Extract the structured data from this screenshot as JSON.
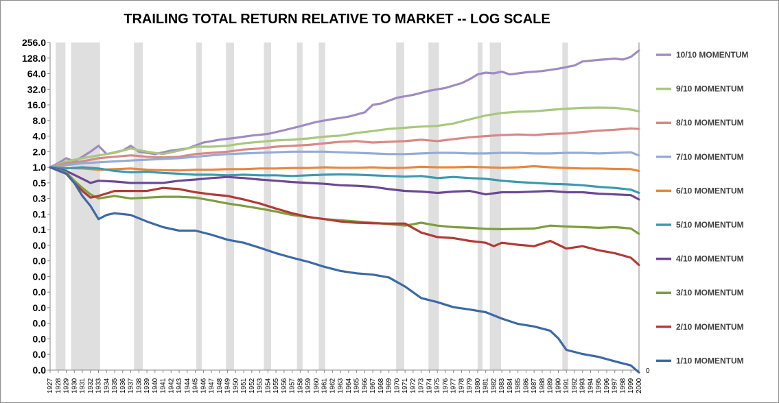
{
  "chart_data": {
    "type": "line",
    "title": "TRAILING TOTAL RETURN RELATIVE TO MARKET -- LOG SCALE",
    "scale": "log2",
    "ylim": [
      0.0001,
      256
    ],
    "ytick_values": [
      256,
      128,
      64,
      32,
      16,
      8,
      4,
      2,
      1,
      0.5,
      0.25,
      0.125,
      0.0625,
      0.03125,
      0.015625,
      0.0078125,
      0.00390625,
      0.001953125,
      0.0009765625,
      0.00048828125,
      0.000244140625,
      0.0001220703125
    ],
    "ytick_labels": [
      "256.0",
      "128.0",
      "64.0",
      "32.0",
      "16.0",
      "8.0",
      "4.0",
      "2.0",
      "1.0",
      "0.5",
      "0.3",
      "0.1",
      "0.1",
      "0.0",
      "0.0",
      "0.0",
      "0.0",
      "0.0",
      "0.0",
      "0.0",
      "0.0",
      "0.0"
    ],
    "secondary_axis_label": "0",
    "xlim": [
      1927,
      2000
    ],
    "x_ticks": [
      "1927",
      "1928",
      "1929",
      "1930",
      "1931",
      "1932",
      "1933",
      "1934",
      "1935",
      "1936",
      "1937",
      "1938",
      "1939",
      "1940",
      "1941",
      "1942",
      "1943",
      "1944",
      "1945",
      "1946",
      "1947",
      "1948",
      "1949",
      "1950",
      "1951",
      "1952",
      "1953",
      "1954",
      "1955",
      "1956",
      "1957",
      "1958",
      "1959",
      "1960",
      "1961",
      "1962",
      "1963",
      "1964",
      "1965",
      "1966",
      "1967",
      "1968",
      "1969",
      "1970",
      "1971",
      "1972",
      "1973",
      "1974",
      "1975",
      "1976",
      "1977",
      "1978",
      "1979",
      "1980",
      "1981",
      "1982",
      "1983",
      "1984",
      "1985",
      "1986",
      "1987",
      "1988",
      "1989",
      "1990",
      "1991",
      "1992",
      "1993",
      "1994",
      "1995",
      "1996",
      "1997",
      "1998",
      "1999",
      "2000"
    ],
    "recessions": [
      [
        1927.7,
        1928.9
      ],
      [
        1929.6,
        1933.2
      ],
      [
        1937.4,
        1938.5
      ],
      [
        1945.1,
        1945.8
      ],
      [
        1948.8,
        1949.8
      ],
      [
        1953.5,
        1954.4
      ],
      [
        1957.6,
        1958.3
      ],
      [
        1960.3,
        1961.1
      ],
      [
        1969.9,
        1970.9
      ],
      [
        1973.9,
        1975.2
      ],
      [
        1980.0,
        1980.6
      ],
      [
        1981.5,
        1982.9
      ],
      [
        1990.5,
        1991.2
      ]
    ],
    "legend_position": "right",
    "series": [
      {
        "name": "10/10 MOMENTUM",
        "color": "#9e8cc1",
        "x": [
          1927,
          1928,
          1929,
          1930,
          1931,
          1932,
          1933,
          1934,
          1936,
          1937,
          1938,
          1940,
          1942,
          1944,
          1946,
          1948,
          1950,
          1952,
          1954,
          1956,
          1958,
          1960,
          1962,
          1964,
          1966,
          1967,
          1968,
          1970,
          1972,
          1974,
          1976,
          1978,
          1979,
          1980,
          1981,
          1982,
          1983,
          1984,
          1986,
          1988,
          1990,
          1992,
          1993,
          1995,
          1997,
          1998,
          1999,
          2000
        ],
        "values": [
          1.0,
          1.2,
          1.5,
          1.3,
          1.6,
          2.0,
          2.6,
          1.8,
          2.1,
          2.6,
          2.0,
          1.8,
          2.1,
          2.3,
          3.0,
          3.4,
          3.7,
          4.1,
          4.4,
          5.2,
          6.2,
          7.5,
          8.5,
          9.5,
          11.5,
          16,
          17,
          22,
          25,
          30,
          34,
          42,
          50,
          62,
          67,
          65,
          70,
          62,
          68,
          72,
          80,
          92,
          110,
          118,
          125,
          120,
          135,
          180
        ]
      },
      {
        "name": "9/10 MOMENTUM",
        "color": "#a8c87e",
        "x": [
          1927,
          1929,
          1931,
          1933,
          1935,
          1937,
          1939,
          1941,
          1943,
          1945,
          1947,
          1949,
          1951,
          1953,
          1955,
          1957,
          1959,
          1961,
          1963,
          1965,
          1967,
          1969,
          1971,
          1973,
          1975,
          1977,
          1979,
          1981,
          1983,
          1985,
          1987,
          1989,
          1991,
          1993,
          1995,
          1997,
          1999,
          2000
        ],
        "values": [
          1.0,
          1.3,
          1.5,
          1.7,
          1.9,
          2.3,
          2.0,
          1.8,
          2.1,
          2.5,
          2.5,
          2.6,
          2.9,
          3.1,
          3.3,
          3.4,
          3.6,
          3.9,
          4.1,
          4.6,
          5.0,
          5.5,
          5.8,
          6.1,
          6.3,
          7.0,
          8.4,
          10.0,
          11.2,
          11.8,
          12.0,
          12.8,
          13.5,
          14.0,
          14.2,
          14.0,
          13.0,
          12.0
        ]
      },
      {
        "name": "8/10 MOMENTUM",
        "color": "#d98886",
        "x": [
          1927,
          1929,
          1931,
          1933,
          1935,
          1937,
          1939,
          1941,
          1943,
          1945,
          1947,
          1949,
          1951,
          1953,
          1955,
          1957,
          1959,
          1961,
          1963,
          1965,
          1967,
          1969,
          1971,
          1973,
          1975,
          1977,
          1979,
          1981,
          1983,
          1985,
          1987,
          1989,
          1991,
          1993,
          1995,
          1997,
          1999,
          2000
        ],
        "values": [
          1.0,
          1.2,
          1.3,
          1.5,
          1.6,
          1.7,
          1.6,
          1.55,
          1.6,
          1.8,
          1.9,
          2.0,
          2.2,
          2.3,
          2.5,
          2.6,
          2.7,
          2.9,
          3.1,
          3.2,
          3.0,
          3.1,
          3.2,
          3.4,
          3.2,
          3.5,
          3.8,
          4.0,
          4.2,
          4.3,
          4.2,
          4.4,
          4.5,
          4.8,
          5.1,
          5.3,
          5.6,
          5.5
        ]
      },
      {
        "name": "7/10 MOMENTUM",
        "color": "#94abd6",
        "x": [
          1927,
          1929,
          1931,
          1933,
          1935,
          1937,
          1939,
          1941,
          1943,
          1945,
          1947,
          1949,
          1951,
          1953,
          1955,
          1957,
          1959,
          1961,
          1963,
          1965,
          1967,
          1969,
          1971,
          1973,
          1975,
          1977,
          1979,
          1981,
          1983,
          1985,
          1987,
          1989,
          1991,
          1993,
          1995,
          1997,
          1999,
          2000
        ],
        "values": [
          1.0,
          1.1,
          1.2,
          1.25,
          1.3,
          1.35,
          1.4,
          1.45,
          1.5,
          1.6,
          1.7,
          1.8,
          1.85,
          1.9,
          1.95,
          2.0,
          2.0,
          2.0,
          1.95,
          1.9,
          1.85,
          1.8,
          1.8,
          1.85,
          1.9,
          1.9,
          1.85,
          1.85,
          1.9,
          1.9,
          1.85,
          1.85,
          1.9,
          1.9,
          1.85,
          1.9,
          1.95,
          1.7
        ]
      },
      {
        "name": "6/10 MOMENTUM",
        "color": "#e5873e",
        "x": [
          1927,
          1929,
          1931,
          1933,
          1935,
          1937,
          1939,
          1941,
          1943,
          1945,
          1947,
          1949,
          1951,
          1953,
          1955,
          1957,
          1959,
          1961,
          1963,
          1965,
          1967,
          1969,
          1971,
          1973,
          1975,
          1977,
          1979,
          1981,
          1983,
          1985,
          1987,
          1989,
          1991,
          1993,
          1995,
          1997,
          1999,
          2000
        ],
        "values": [
          1.0,
          0.97,
          0.95,
          0.9,
          0.92,
          0.95,
          0.9,
          0.88,
          0.87,
          0.9,
          0.9,
          0.92,
          0.92,
          0.95,
          0.95,
          0.97,
          0.97,
          1.0,
          0.98,
          0.98,
          1.0,
          0.97,
          0.98,
          1.02,
          1.0,
          1.0,
          1.02,
          1.0,
          0.98,
          1.0,
          1.05,
          1.0,
          0.97,
          0.95,
          0.95,
          0.93,
          0.92,
          0.85
        ]
      },
      {
        "name": "5/10 MOMENTUM",
        "color": "#3a9aae",
        "x": [
          1927,
          1929,
          1931,
          1933,
          1935,
          1937,
          1939,
          1941,
          1943,
          1945,
          1947,
          1949,
          1951,
          1953,
          1955,
          1957,
          1959,
          1961,
          1963,
          1965,
          1967,
          1969,
          1971,
          1973,
          1975,
          1977,
          1979,
          1981,
          1983,
          1985,
          1987,
          1989,
          1991,
          1993,
          1995,
          1997,
          1999,
          2000
        ],
        "values": [
          1.0,
          0.95,
          1.0,
          0.95,
          0.85,
          0.8,
          0.82,
          0.78,
          0.75,
          0.72,
          0.72,
          0.7,
          0.72,
          0.7,
          0.7,
          0.68,
          0.7,
          0.72,
          0.73,
          0.72,
          0.7,
          0.68,
          0.66,
          0.68,
          0.62,
          0.65,
          0.62,
          0.6,
          0.55,
          0.52,
          0.5,
          0.48,
          0.47,
          0.45,
          0.42,
          0.4,
          0.37,
          0.32
        ]
      },
      {
        "name": "4/10 MOMENTUM",
        "color": "#6c4893",
        "x": [
          1927,
          1929,
          1931,
          1932,
          1933,
          1935,
          1937,
          1939,
          1941,
          1943,
          1945,
          1947,
          1949,
          1951,
          1953,
          1955,
          1957,
          1959,
          1961,
          1963,
          1965,
          1967,
          1969,
          1971,
          1973,
          1975,
          1977,
          1979,
          1981,
          1983,
          1985,
          1987,
          1989,
          1991,
          1993,
          1995,
          1997,
          1999,
          2000
        ],
        "values": [
          1.0,
          0.85,
          0.6,
          0.5,
          0.55,
          0.53,
          0.5,
          0.5,
          0.5,
          0.55,
          0.58,
          0.62,
          0.65,
          0.62,
          0.58,
          0.55,
          0.52,
          0.5,
          0.48,
          0.45,
          0.44,
          0.42,
          0.38,
          0.35,
          0.34,
          0.32,
          0.34,
          0.35,
          0.3,
          0.33,
          0.33,
          0.34,
          0.35,
          0.33,
          0.33,
          0.31,
          0.3,
          0.29,
          0.24
        ]
      },
      {
        "name": "3/10 MOMENTUM",
        "color": "#7d9e3e",
        "x": [
          1927,
          1929,
          1930,
          1931,
          1932,
          1933,
          1935,
          1937,
          1939,
          1941,
          1943,
          1945,
          1947,
          1949,
          1951,
          1953,
          1955,
          1957,
          1959,
          1961,
          1963,
          1965,
          1967,
          1969,
          1971,
          1973,
          1975,
          1977,
          1979,
          1981,
          1983,
          1985,
          1987,
          1989,
          1991,
          1993,
          1995,
          1997,
          1999,
          2000
        ],
        "values": [
          1.0,
          0.8,
          0.55,
          0.4,
          0.3,
          0.25,
          0.28,
          0.25,
          0.26,
          0.27,
          0.27,
          0.26,
          0.23,
          0.2,
          0.18,
          0.16,
          0.14,
          0.12,
          0.11,
          0.1,
          0.095,
          0.09,
          0.085,
          0.08,
          0.075,
          0.085,
          0.075,
          0.07,
          0.068,
          0.065,
          0.064,
          0.065,
          0.066,
          0.075,
          0.072,
          0.07,
          0.068,
          0.07,
          0.066,
          0.052
        ]
      },
      {
        "name": "2/10 MOMENTUM",
        "color": "#b03b35",
        "x": [
          1927,
          1929,
          1930,
          1931,
          1932,
          1933,
          1935,
          1937,
          1939,
          1941,
          1943,
          1945,
          1947,
          1949,
          1951,
          1953,
          1955,
          1957,
          1959,
          1961,
          1963,
          1965,
          1967,
          1969,
          1971,
          1973,
          1975,
          1977,
          1979,
          1981,
          1982,
          1983,
          1985,
          1987,
          1989,
          1991,
          1993,
          1995,
          1997,
          1999,
          2000
        ],
        "values": [
          1.0,
          0.75,
          0.5,
          0.35,
          0.26,
          0.28,
          0.35,
          0.35,
          0.35,
          0.4,
          0.38,
          0.33,
          0.3,
          0.28,
          0.24,
          0.2,
          0.16,
          0.13,
          0.11,
          0.1,
          0.09,
          0.085,
          0.083,
          0.082,
          0.082,
          0.055,
          0.045,
          0.043,
          0.038,
          0.035,
          0.03,
          0.035,
          0.032,
          0.03,
          0.038,
          0.027,
          0.03,
          0.025,
          0.022,
          0.018,
          0.013
        ]
      },
      {
        "name": "1/10 MOMENTUM",
        "color": "#3c69a6",
        "x": [
          1927,
          1929,
          1930,
          1931,
          1932,
          1933,
          1934,
          1935,
          1937,
          1939,
          1941,
          1943,
          1945,
          1947,
          1949,
          1951,
          1953,
          1955,
          1957,
          1959,
          1961,
          1963,
          1965,
          1967,
          1969,
          1971,
          1973,
          1975,
          1977,
          1979,
          1981,
          1983,
          1985,
          1987,
          1989,
          1990,
          1991,
          1993,
          1995,
          1997,
          1999,
          2000
        ],
        "values": [
          1.0,
          0.75,
          0.5,
          0.28,
          0.18,
          0.1,
          0.12,
          0.13,
          0.12,
          0.09,
          0.07,
          0.06,
          0.06,
          0.05,
          0.04,
          0.035,
          0.028,
          0.022,
          0.018,
          0.015,
          0.012,
          0.01,
          0.009,
          0.0085,
          0.0075,
          0.005,
          0.003,
          0.0025,
          0.002,
          0.0018,
          0.0016,
          0.0012,
          0.00095,
          0.00085,
          0.0007,
          0.0005,
          0.0003,
          0.00025,
          0.00022,
          0.00018,
          0.00015,
          0.00011
        ]
      }
    ]
  }
}
